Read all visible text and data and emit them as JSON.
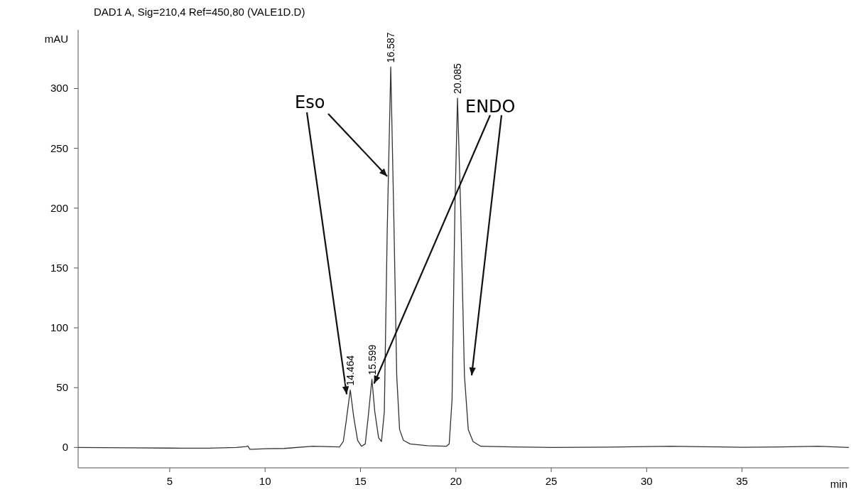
{
  "chart_data": {
    "type": "line",
    "title": "DAD1 A, Sig=210,4 Ref=450,80 (VALE1D.D)",
    "xlabel": "min",
    "ylabel": "mAU",
    "xlim": [
      0.2,
      40.6
    ],
    "ylim": [
      -17,
      349
    ],
    "xticks": [
      5,
      10,
      15,
      20,
      25,
      30,
      35
    ],
    "yticks": [
      0,
      50,
      100,
      150,
      200,
      250,
      300
    ],
    "grid": false,
    "marker": "none",
    "line_style": "solid",
    "series": [
      {
        "color": "#333333",
        "x": [
          0.2,
          3,
          5,
          7,
          8.5,
          9.0,
          9.1,
          9.2,
          9.4,
          10,
          11,
          12.5,
          13.9,
          14.1,
          14.25,
          14.464,
          14.65,
          14.85,
          15.05,
          15.25,
          15.4,
          15.599,
          15.75,
          15.95,
          16.1,
          16.25,
          16.4,
          16.587,
          16.75,
          16.9,
          17.05,
          17.25,
          17.6,
          18.5,
          19.5,
          19.65,
          19.8,
          19.95,
          20.085,
          20.25,
          20.45,
          20.65,
          20.9,
          21.3,
          23,
          25,
          28,
          31.3,
          33,
          35,
          37,
          39,
          40.6
        ],
        "values": [
          0,
          -0.3,
          -0.5,
          -0.6,
          0,
          0.8,
          1.2,
          -1.5,
          -1.5,
          -1,
          -0.8,
          1,
          0.5,
          5,
          22,
          48,
          25,
          6,
          1,
          3,
          25,
          57,
          30,
          8,
          5,
          30,
          180,
          318,
          190,
          60,
          15,
          6,
          3,
          1.5,
          1,
          3,
          40,
          200,
          292,
          200,
          60,
          15,
          5,
          1,
          0.5,
          0,
          0.3,
          1,
          0.6,
          0.2,
          0.5,
          1,
          0
        ]
      }
    ],
    "annotations": [
      {
        "text": "14.464",
        "x": 14.464,
        "y": 48
      },
      {
        "text": "15.599",
        "x": 15.599,
        "y": 57
      },
      {
        "text": "16.587",
        "x": 16.587,
        "y": 318
      },
      {
        "text": "20.085",
        "x": 20.085,
        "y": 292
      },
      {
        "text": "Eso",
        "x": 14.464,
        "y": 48
      },
      {
        "text": "ENDO",
        "x": 15.599,
        "y": 57
      }
    ]
  }
}
